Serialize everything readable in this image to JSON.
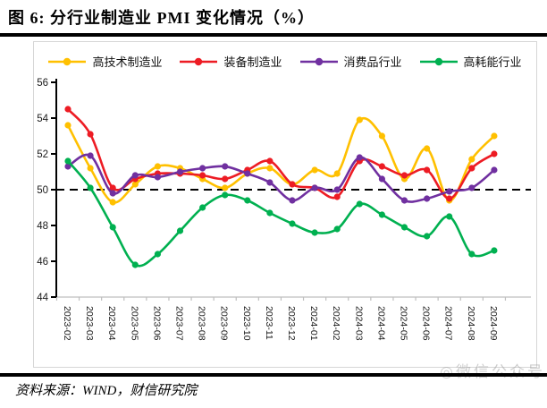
{
  "header": {
    "title": "图 6:  分行业制造业 PMI 变化情况（%）"
  },
  "footer": {
    "source": "资料来源：WIND，财信研究院",
    "watermark": "◎微信公众号"
  },
  "chart_data": {
    "type": "line",
    "title": "分行业制造业PMI变化情况(%)",
    "categories": [
      "2023-02",
      "2023-03",
      "2023-04",
      "2023-05",
      "2023-06",
      "2023-07",
      "2023-08",
      "2023-09",
      "2023-10",
      "2023-11",
      "2023-12",
      "2024-01",
      "2024-02",
      "2024-03",
      "2024-04",
      "2024-05",
      "2024-06",
      "2024-07",
      "2024-08",
      "2024-09"
    ],
    "series": [
      {
        "name": "高技术制造业",
        "color": "#FFC000",
        "values": [
          53.6,
          51.2,
          49.3,
          50.3,
          51.3,
          51.2,
          50.6,
          50.1,
          50.9,
          51.2,
          50.3,
          51.1,
          50.9,
          53.9,
          53.0,
          50.6,
          52.3,
          49.4,
          51.7,
          53.0
        ]
      },
      {
        "name": "装备制造业",
        "color": "#ED1C24",
        "values": [
          54.5,
          53.1,
          50.1,
          50.6,
          50.9,
          50.9,
          50.8,
          50.6,
          51.1,
          51.6,
          50.3,
          50.1,
          49.6,
          51.6,
          51.3,
          50.8,
          51.1,
          49.5,
          51.2,
          52.0
        ]
      },
      {
        "name": "消费品行业",
        "color": "#7030A0",
        "values": [
          51.3,
          51.9,
          49.8,
          50.8,
          50.7,
          51.0,
          51.2,
          51.3,
          50.9,
          50.4,
          49.4,
          50.1,
          50.0,
          51.8,
          50.6,
          49.4,
          49.5,
          49.9,
          50.1,
          51.1
        ]
      },
      {
        "name": "高耗能行业",
        "color": "#00B050",
        "values": [
          51.6,
          50.1,
          47.9,
          45.8,
          46.4,
          47.7,
          49.0,
          49.7,
          49.4,
          48.7,
          48.1,
          47.6,
          47.8,
          49.2,
          48.6,
          47.9,
          47.4,
          48.5,
          46.4,
          46.6
        ]
      }
    ],
    "ylim": [
      44,
      56
    ],
    "ytick_step": 2,
    "baseline": 50,
    "legend_position": "top",
    "grid": false,
    "smooth": true,
    "xlabel": "",
    "ylabel": ""
  }
}
